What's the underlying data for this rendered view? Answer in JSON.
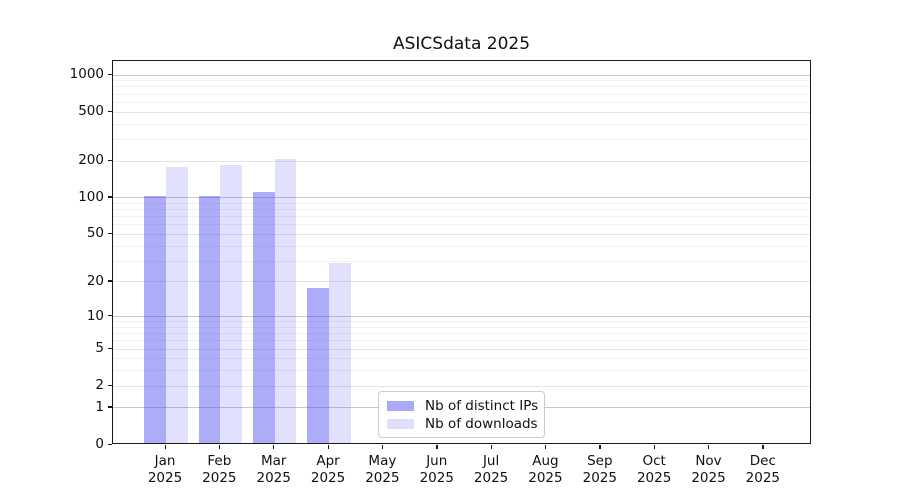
{
  "title": "ASICSdata 2025",
  "chart_data": {
    "type": "bar",
    "title": "ASICSdata 2025",
    "categories": [
      "Jan 2025",
      "Feb 2025",
      "Mar 2025",
      "Apr 2025",
      "May 2025",
      "Jun 2025",
      "Jul 2025",
      "Aug 2025",
      "Sep 2025",
      "Oct 2025",
      "Nov 2025",
      "Dec 2025"
    ],
    "months": [
      "Jan",
      "Feb",
      "Mar",
      "Apr",
      "May",
      "Jun",
      "Jul",
      "Aug",
      "Sep",
      "Oct",
      "Nov",
      "Dec"
    ],
    "year": "2025",
    "series": [
      {
        "name": "Nb of distinct IPs",
        "values": [
          100,
          100,
          108,
          17,
          0,
          0,
          0,
          0,
          0,
          0,
          0,
          0
        ],
        "fill": "rgba(70,70,240,0.45)",
        "legend_color": "#a9a9f7"
      },
      {
        "name": "Nb of downloads",
        "values": [
          172,
          180,
          200,
          28,
          0,
          0,
          0,
          0,
          0,
          0,
          0,
          0
        ],
        "fill": "rgba(70,70,240,0.16)",
        "legend_color": "#dfdffb"
      }
    ],
    "yscale": "log1p",
    "ylim": [
      0,
      1300
    ],
    "y_major_ticks": [
      1000,
      500,
      200,
      100,
      50,
      20,
      10,
      5,
      2,
      1,
      0
    ],
    "y_minor_ticks": [
      3,
      4,
      6,
      7,
      8,
      9,
      30,
      40,
      60,
      70,
      80,
      90,
      300,
      400,
      600,
      700,
      800,
      900
    ],
    "grid": "both",
    "legend_position": "lower center",
    "xlabel": "",
    "ylabel": ""
  },
  "legend": {
    "items": [
      {
        "label": "Nb of distinct IPs"
      },
      {
        "label": "Nb of downloads"
      }
    ]
  },
  "colors": {
    "decade_grid": "#c9c9c9",
    "labeled_grid": "#e4e4e4",
    "minor_grid": "#f0f0f0",
    "spine": "#1a1a1a"
  }
}
